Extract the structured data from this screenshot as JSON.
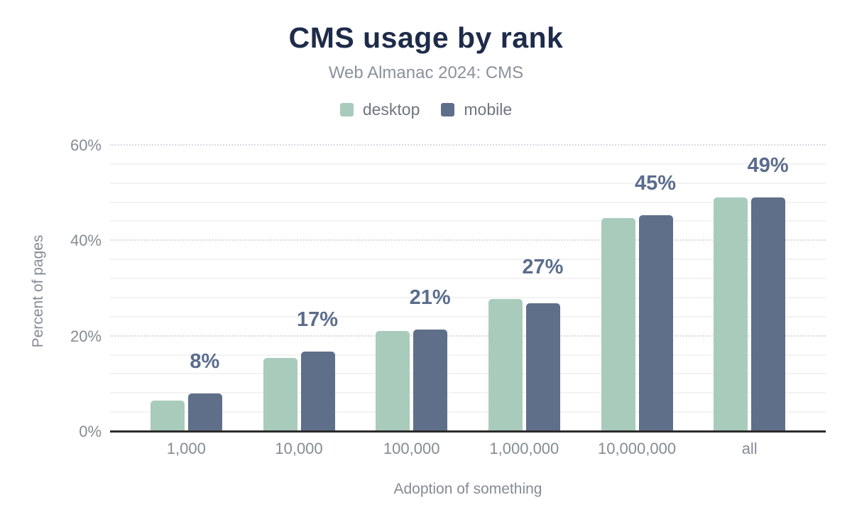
{
  "figure": {
    "title": "CMS usage by rank",
    "subtitle": "Web Almanac 2024: CMS"
  },
  "legend": [
    {
      "label": "desktop",
      "color": "#a9cbbb"
    },
    {
      "label": "mobile",
      "color": "#5f6f8a"
    }
  ],
  "palette": {
    "title_text": "#1e2b4a",
    "subtitle_text": "#8b919c",
    "axis_text": "#858b94",
    "legend_text": "#6e757f",
    "bar_label_text": "#5b6d8c",
    "axis_line": "#2b2b2b",
    "grid_minor": "#f3f3f4",
    "grid_major": "#d9dade",
    "desktop_bar": "#a9cbbb",
    "mobile_bar": "#5f6f8a",
    "background": "#ffffff"
  },
  "chart_data": {
    "type": "bar",
    "title": "CMS usage by rank",
    "subtitle": "Web Almanac 2024: CMS",
    "categories": [
      "1,000",
      "10,000",
      "100,000",
      "1,000,000",
      "10,000,000",
      "all"
    ],
    "series": [
      {
        "name": "desktop",
        "color": "#a9cbbb",
        "values": [
          6.5,
          15.5,
          21.1,
          27.8,
          44.8,
          49.2
        ]
      },
      {
        "name": "mobile",
        "color": "#5f6f8a",
        "values": [
          8.1,
          16.9,
          21.4,
          26.9,
          45.4,
          49.2
        ]
      }
    ],
    "bar_value_labels": [
      "8%",
      "17%",
      "21%",
      "27%",
      "45%",
      "49%"
    ],
    "bar_value_labels_anchor_series": "mobile",
    "xlabel": "Adoption of something",
    "ylabel": "Percent of pages",
    "ylim": [
      0,
      60
    ],
    "yticks": [
      0,
      20,
      40,
      60
    ],
    "ytick_suffix": "%",
    "minor_grid_step": 4,
    "major_grid_step": 20,
    "grid": true,
    "legend_position": "top"
  }
}
